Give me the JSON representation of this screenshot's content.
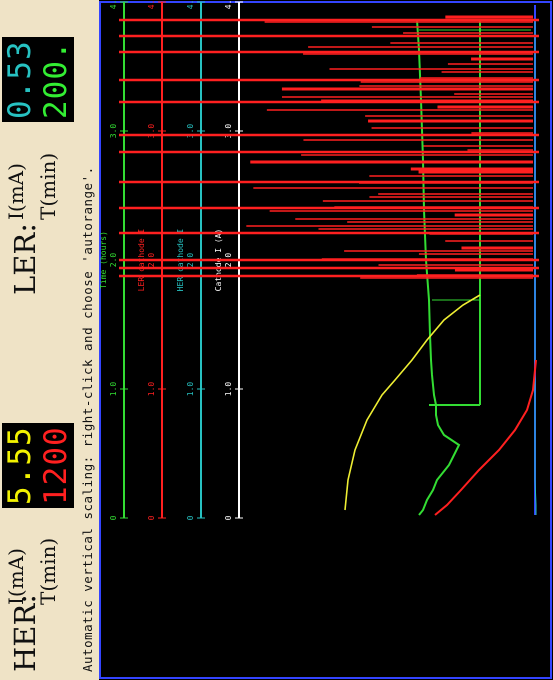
{
  "header": {
    "her_label": "HER:",
    "ler_label": "LER:",
    "i_label": "I(mA)",
    "t_label": "T(min)",
    "her_current": "5.55",
    "her_time": "1200",
    "ler_current": "0.53",
    "ler_time": "200.",
    "colors": {
      "her_current": "#f2f200",
      "her_time": "#ff2020",
      "ler_current": "#27c2c2",
      "ler_time": "#33ee33"
    }
  },
  "hint_text": "Automatic vertical scaling: right-click and choose 'autorange'.",
  "plot": {
    "background": "#000000",
    "trace_colors": {
      "red": "#ff2020",
      "green": "#33dd33",
      "yellow": "#eeee33",
      "cyan": "#27c2c2",
      "blue": "#3344ff"
    },
    "axes": [
      {
        "color": "#ffffff",
        "label": "Cathode I (A)",
        "ticks": [
          "0",
          "1.0",
          "2.0",
          "3.0",
          "4.0"
        ]
      },
      {
        "color": "#27c2c2",
        "label": "HER cathode I",
        "ticks": [
          "0",
          "1.0",
          "2.0",
          "3.0",
          "4.0"
        ]
      },
      {
        "color": "#ff2020",
        "label": "LER cathode I",
        "ticks": [
          "0",
          "1.0",
          "2.0",
          "3.0",
          "4.0"
        ]
      },
      {
        "color": "#33dd33",
        "label": "Time (hours)",
        "ticks": [
          "0",
          "1.0",
          "2.0",
          "3.0",
          "4.0"
        ]
      }
    ]
  }
}
